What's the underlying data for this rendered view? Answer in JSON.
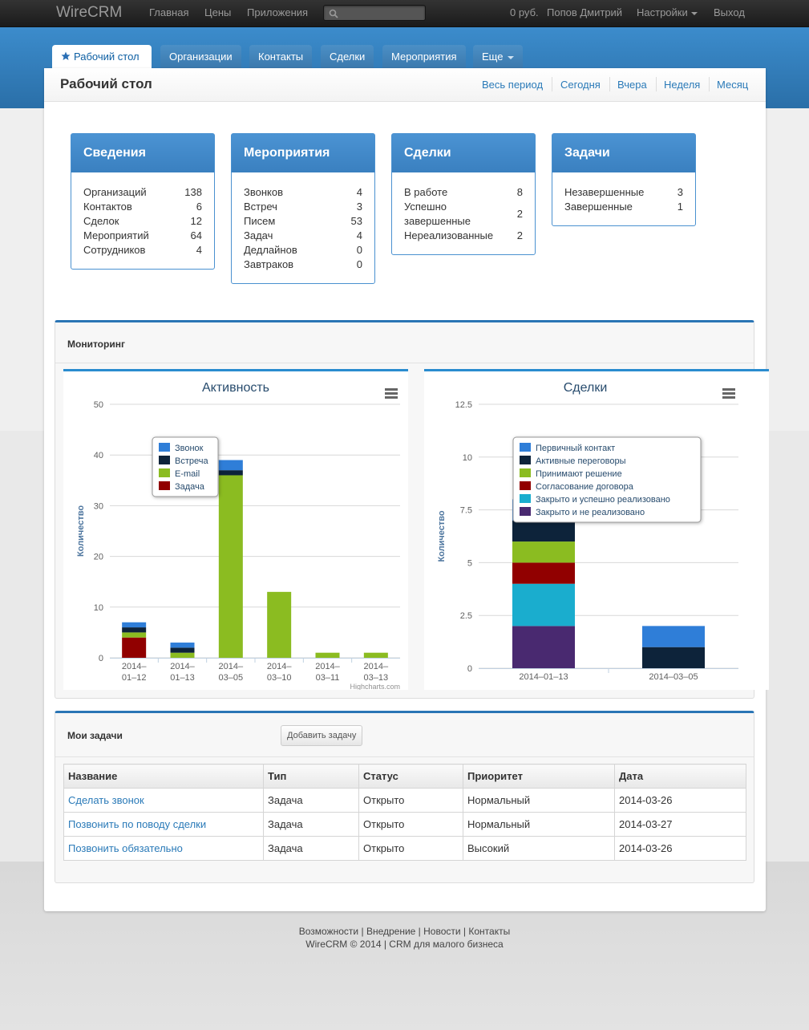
{
  "navbar": {
    "brand": "WireCRM",
    "links": [
      "Главная",
      "Цены",
      "Приложения"
    ],
    "balance": "0 руб.",
    "user": "Попов Дмитрий",
    "settings": "Настройки",
    "logout": "Выход"
  },
  "tabs": [
    "Рабочий стол",
    "Организации",
    "Контакты",
    "Сделки",
    "Мероприятия",
    "Еще"
  ],
  "page": {
    "title": "Рабочий стол",
    "periods": [
      "Весь период",
      "Сегодня",
      "Вчера",
      "Неделя",
      "Месяц"
    ]
  },
  "boxes": [
    {
      "title": "Сведения",
      "rows": [
        [
          "Организаций",
          "138"
        ],
        [
          "Контактов",
          "6"
        ],
        [
          "Сделок",
          "12"
        ],
        [
          "Мероприятий",
          "64"
        ],
        [
          "Сотрудников",
          "4"
        ]
      ]
    },
    {
      "title": "Мероприятия",
      "rows": [
        [
          "Звонков",
          "4"
        ],
        [
          "Встреч",
          "3"
        ],
        [
          "Писем",
          "53"
        ],
        [
          "Задач",
          "4"
        ],
        [
          "Дедлайнов",
          "0"
        ],
        [
          "Завтраков",
          "0"
        ]
      ]
    },
    {
      "title": "Сделки",
      "rows": [
        [
          "В работе",
          "8"
        ],
        [
          "Успешно завершенные",
          "2"
        ],
        [
          "Нереализованные",
          "2"
        ]
      ]
    },
    {
      "title": "Задачи",
      "rows": [
        [
          "Незавершенные",
          "3"
        ],
        [
          "Завершенные",
          "1"
        ]
      ]
    }
  ],
  "monitoring": {
    "title": "Мониторинг",
    "credit": "Highcharts.com"
  },
  "chart_data": [
    {
      "type": "bar",
      "stacked": true,
      "title": "Активность",
      "ylabel": "Количество",
      "ylim": [
        0,
        50
      ],
      "yticks": [
        0,
        10,
        20,
        30,
        40,
        50
      ],
      "categories": [
        "2014-01-12",
        "2014-01-13",
        "2014-03-05",
        "2014-03-10",
        "2014-03-11",
        "2014-03-13"
      ],
      "series": [
        {
          "name": "Звонок",
          "color": "#2f7ed8",
          "values": [
            1,
            1,
            2,
            0,
            0,
            0
          ]
        },
        {
          "name": "Встреча",
          "color": "#0d233a",
          "values": [
            1,
            1,
            1,
            0,
            0,
            0
          ]
        },
        {
          "name": "E-mail",
          "color": "#8bbc21",
          "values": [
            1,
            1,
            36,
            13,
            1,
            1
          ]
        },
        {
          "name": "Задача",
          "color": "#910000",
          "values": [
            4,
            0,
            0,
            0,
            0,
            0
          ]
        }
      ],
      "legend": "top-left"
    },
    {
      "type": "bar",
      "stacked": true,
      "title": "Сделки",
      "ylabel": "Количество",
      "ylim": [
        0,
        12.5
      ],
      "yticks": [
        0,
        2.5,
        5,
        7.5,
        10,
        12.5
      ],
      "categories": [
        "2014-01-13",
        "2014-03-05"
      ],
      "series": [
        {
          "name": "Первичный контакт",
          "color": "#2f7ed8",
          "values": [
            1,
            1
          ]
        },
        {
          "name": "Активные переговоры",
          "color": "#0d233a",
          "values": [
            1,
            1
          ]
        },
        {
          "name": "Принимают решение",
          "color": "#8bbc21",
          "values": [
            1,
            0
          ]
        },
        {
          "name": "Согласование договора",
          "color": "#910000",
          "values": [
            1,
            0
          ]
        },
        {
          "name": "Закрыто и успешно реализовано",
          "color": "#1aadce",
          "values": [
            2,
            0
          ]
        },
        {
          "name": "Закрыто и не реализовано",
          "color": "#492970",
          "values": [
            2,
            0
          ]
        }
      ],
      "legend": "top-left"
    }
  ],
  "tasks": {
    "title": "Мои задачи",
    "add_button": "Добавить задачу",
    "columns": [
      "Название",
      "Тип",
      "Статус",
      "Приоритет",
      "Дата"
    ],
    "rows": [
      [
        "Сделать звонок",
        "Задача",
        "Открыто",
        "Нормальный",
        "2014-03-26"
      ],
      [
        "Позвонить по поводу сделки",
        "Задача",
        "Открыто",
        "Нормальный",
        "2014-03-27"
      ],
      [
        "Позвонить обязательно",
        "Задача",
        "Открыто",
        "Высокий",
        "2014-03-26"
      ]
    ]
  },
  "footer": {
    "links": [
      "Возможности",
      "Внедрение",
      "Новости",
      "Контакты"
    ],
    "copyright": "WireCRM © 2014 | CRM для малого бизнеса"
  }
}
